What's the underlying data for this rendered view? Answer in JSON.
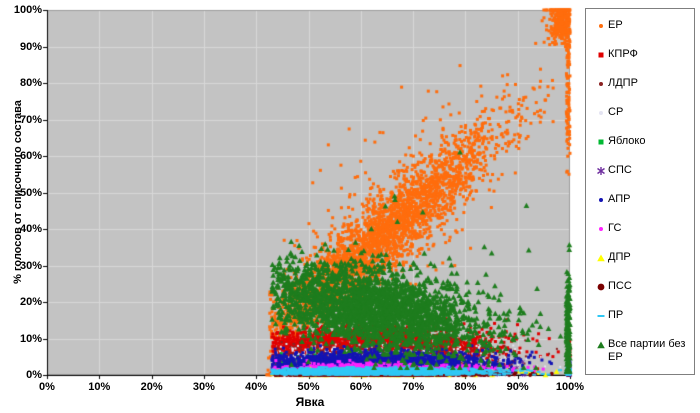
{
  "chart_data": {
    "type": "scatter",
    "title": "",
    "xlabel": "Явка",
    "ylabel": "% голосов от списочного состава",
    "xlim": [
      0,
      1
    ],
    "ylim": [
      0,
      1
    ],
    "grid": true,
    "legend_position": "right",
    "plot_bg_color": "#C3C3C3",
    "grid_color": "#D8D8D8",
    "axis_color": "#000000",
    "x_ticks": [
      "0%",
      "10%",
      "20%",
      "30%",
      "40%",
      "50%",
      "60%",
      "70%",
      "80%",
      "90%",
      "100%"
    ],
    "y_ticks": [
      "0%",
      "10%",
      "20%",
      "30%",
      "40%",
      "50%",
      "60%",
      "70%",
      "80%",
      "90%",
      "100%"
    ],
    "series": [
      {
        "name": "ЕР",
        "color": "#FF6D0D",
        "marker": "dot",
        "size": 3,
        "clusters": [
          {
            "n": 2800,
            "t": {
              "type": "gauss",
              "mean": 0.63,
              "sd": 0.115,
              "min": 0.425,
              "max": 1.0
            },
            "v": {
              "base": -0.42,
              "slope": 1.25,
              "sd": 0.055,
              "min": 0.005,
              "max": 1.0
            }
          },
          {
            "n": 350,
            "t": {
              "type": "gauss",
              "mean": 0.63,
              "sd": 0.13,
              "min": 0.425,
              "max": 1.0
            },
            "v": {
              "base": -0.42,
              "slope": 1.25,
              "sd": 0.12,
              "min": 0.0,
              "max": 1.0
            }
          },
          {
            "n": 260,
            "t": {
              "type": "gauss",
              "mean": 0.985,
              "sd": 0.012,
              "min": 0.93,
              "max": 1.0
            },
            "v": {
              "base": 0.97,
              "slope": 0,
              "sd": 0.035,
              "min": 0.6,
              "max": 1.0
            }
          },
          {
            "n": 120,
            "t": {
              "type": "uniform",
              "min": 0.993,
              "max": 1.0
            },
            "v": {
              "base": 0.8,
              "slope": 0,
              "sd": 0.12,
              "min": 0.55,
              "max": 1.0
            }
          },
          {
            "n": 70,
            "t": {
              "type": "uniform",
              "min": 0.42,
              "max": 0.52
            },
            "v": {
              "base": 0.03,
              "slope": 0,
              "sd": 0.025,
              "min": 0.0,
              "max": 0.1
            }
          }
        ]
      },
      {
        "name": "КПРФ",
        "color": "#E00000",
        "marker": "square",
        "size": 3,
        "clusters": [
          {
            "n": 2400,
            "t": {
              "type": "gauss",
              "mean": 0.62,
              "sd": 0.115,
              "min": 0.43,
              "max": 1.0
            },
            "v": {
              "base": 0.075,
              "slope": 0,
              "sd": 0.027,
              "min": 0.01,
              "max": 0.18
            }
          },
          {
            "n": 150,
            "t": {
              "type": "uniform",
              "min": 0.995,
              "max": 1.0
            },
            "v": {
              "base": 0.06,
              "slope": 0,
              "sd": 0.04,
              "min": 0.0,
              "max": 0.2
            }
          }
        ]
      },
      {
        "name": "ЛДПР",
        "color": "#8B2222",
        "marker": "dot",
        "size": 2,
        "clusters": [
          {
            "n": 1200,
            "t": {
              "type": "gauss",
              "mean": 0.62,
              "sd": 0.115,
              "min": 0.43,
              "max": 1.0
            },
            "v": {
              "base": 0.045,
              "slope": 0,
              "sd": 0.02,
              "min": 0.005,
              "max": 0.1
            }
          }
        ]
      },
      {
        "name": "СР",
        "color": "#E4E4F2",
        "marker": "dot",
        "size": 2,
        "clusters": [
          {
            "n": 900,
            "t": {
              "type": "gauss",
              "mean": 0.62,
              "sd": 0.115,
              "min": 0.43,
              "max": 1.0
            },
            "v": {
              "base": 0.04,
              "slope": 0,
              "sd": 0.02,
              "min": 0.005,
              "max": 0.09
            }
          }
        ]
      },
      {
        "name": "Яблоко",
        "color": "#00B832",
        "marker": "square",
        "size": 3,
        "clusters": [
          {
            "n": 600,
            "t": {
              "type": "gauss",
              "mean": 0.58,
              "sd": 0.09,
              "min": 0.43,
              "max": 1.0
            },
            "v": {
              "base": 0.022,
              "slope": 0,
              "sd": 0.013,
              "min": 0.002,
              "max": 0.07
            }
          }
        ]
      },
      {
        "name": "СПС",
        "color": "#7030A0",
        "marker": "asterisk",
        "size": 4,
        "clusters": [
          {
            "n": 450,
            "t": {
              "type": "gauss",
              "mean": 0.62,
              "sd": 0.115,
              "min": 0.43,
              "max": 1.0
            },
            "v": {
              "base": 0.015,
              "slope": 0,
              "sd": 0.01,
              "min": 0.001,
              "max": 0.05
            }
          }
        ]
      },
      {
        "name": "АПР",
        "color": "#1414B4",
        "marker": "dot",
        "size": 3,
        "clusters": [
          {
            "n": 2200,
            "t": {
              "type": "gauss",
              "mean": 0.62,
              "sd": 0.115,
              "min": 0.43,
              "max": 1.0
            },
            "v": {
              "base": 0.032,
              "slope": 0,
              "sd": 0.016,
              "min": 0.003,
              "max": 0.08
            }
          },
          {
            "n": 80,
            "t": {
              "type": "uniform",
              "min": 0.995,
              "max": 1.0
            },
            "v": {
              "base": 0.03,
              "slope": 0,
              "sd": 0.02,
              "min": 0.0,
              "max": 0.09
            }
          }
        ]
      },
      {
        "name": "ГС",
        "color": "#FF22FF",
        "marker": "dot",
        "size": 3,
        "clusters": [
          {
            "n": 1000,
            "t": {
              "type": "gauss",
              "mean": 0.62,
              "sd": 0.115,
              "min": 0.43,
              "max": 1.0
            },
            "v": {
              "base": 0.013,
              "slope": 0,
              "sd": 0.008,
              "min": 0.001,
              "max": 0.04
            }
          },
          {
            "n": 60,
            "t": {
              "type": "uniform",
              "min": 0.995,
              "max": 1.0
            },
            "v": {
              "base": 0.012,
              "slope": 0,
              "sd": 0.008,
              "min": 0.0,
              "max": 0.04
            }
          }
        ]
      },
      {
        "name": "ДПР",
        "color": "#FFFF00",
        "marker": "triangle",
        "size": 3,
        "clusters": [
          {
            "n": 260,
            "t": {
              "type": "gauss",
              "mean": 0.62,
              "sd": 0.115,
              "min": 0.43,
              "max": 1.0
            },
            "v": {
              "base": 0.005,
              "slope": 0,
              "sd": 0.004,
              "min": 0.0,
              "max": 0.02
            }
          }
        ]
      },
      {
        "name": "ПСС",
        "color": "#7A0000",
        "marker": "circle",
        "size": 3,
        "clusters": [
          {
            "n": 1400,
            "t": {
              "type": "gauss",
              "mean": 0.62,
              "sd": 0.115,
              "min": 0.43,
              "max": 1.0
            },
            "v": {
              "base": 0.004,
              "slope": 0,
              "sd": 0.0035,
              "min": 0.0,
              "max": 0.015
            }
          }
        ]
      },
      {
        "name": "ПР",
        "color": "#2FC8F5",
        "marker": "dash",
        "size": 4,
        "clusters": [
          {
            "n": 1600,
            "t": {
              "type": "gauss",
              "mean": 0.62,
              "sd": 0.115,
              "min": 0.43,
              "max": 1.0
            },
            "v": {
              "base": 0.009,
              "slope": 0,
              "sd": 0.005,
              "min": 0.001,
              "max": 0.025
            }
          },
          {
            "n": 80,
            "t": {
              "type": "uniform",
              "min": 0.995,
              "max": 1.0
            },
            "v": {
              "base": 0.01,
              "slope": 0,
              "sd": 0.006,
              "min": 0.0,
              "max": 0.03
            }
          }
        ]
      },
      {
        "name": "Все партии без ЕР",
        "color": "#1E7D1E",
        "marker": "triangle",
        "size": 3,
        "clusters": [
          {
            "n": 2400,
            "t": {
              "type": "gauss",
              "mean": 0.62,
              "sd": 0.11,
              "min": 0.43,
              "max": 1.0
            },
            "v": {
              "base": 0.32,
              "slope": -0.22,
              "sd": 0.055,
              "min": 0.02,
              "max": 0.42
            }
          },
          {
            "n": 180,
            "t": {
              "type": "uniform",
              "min": 0.993,
              "max": 1.0
            },
            "v": {
              "base": 0.12,
              "slope": 0,
              "sd": 0.09,
              "min": 0.01,
              "max": 0.45
            }
          },
          {
            "n": 25,
            "t": {
              "type": "gauss",
              "mean": 0.75,
              "sd": 0.12,
              "min": 0.5,
              "max": 1.0
            },
            "v": {
              "base": 0.32,
              "slope": 0,
              "sd": 0.08,
              "min": 0.2,
              "max": 0.62
            }
          }
        ]
      }
    ]
  }
}
